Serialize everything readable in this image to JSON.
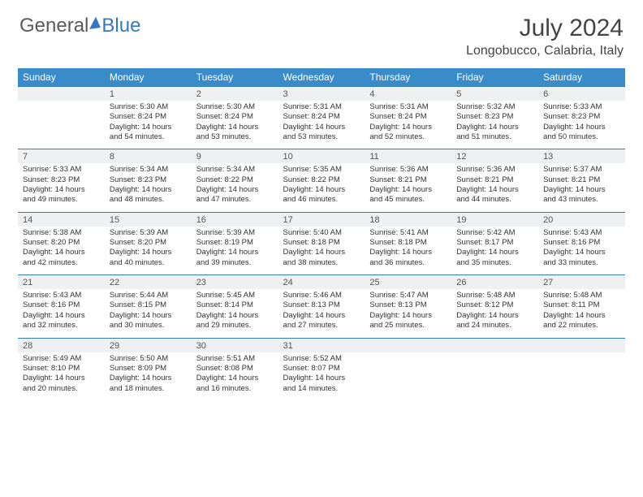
{
  "brand": {
    "name1": "General",
    "name2": "Blue"
  },
  "title": "July 2024",
  "location": "Longobucco, Calabria, Italy",
  "colors": {
    "header_bg": "#3a8bc9",
    "header_text": "#ffffff",
    "daynum_bg": "#eef0f2",
    "border": "#3a7bb0",
    "text": "#333333",
    "logo_gray": "#5a5a5a",
    "logo_blue": "#3478c0"
  },
  "day_headers": [
    "Sunday",
    "Monday",
    "Tuesday",
    "Wednesday",
    "Thursday",
    "Friday",
    "Saturday"
  ],
  "weeks": [
    [
      {
        "num": "",
        "lines": []
      },
      {
        "num": "1",
        "lines": [
          "Sunrise: 5:30 AM",
          "Sunset: 8:24 PM",
          "Daylight: 14 hours",
          "and 54 minutes."
        ]
      },
      {
        "num": "2",
        "lines": [
          "Sunrise: 5:30 AM",
          "Sunset: 8:24 PM",
          "Daylight: 14 hours",
          "and 53 minutes."
        ]
      },
      {
        "num": "3",
        "lines": [
          "Sunrise: 5:31 AM",
          "Sunset: 8:24 PM",
          "Daylight: 14 hours",
          "and 53 minutes."
        ]
      },
      {
        "num": "4",
        "lines": [
          "Sunrise: 5:31 AM",
          "Sunset: 8:24 PM",
          "Daylight: 14 hours",
          "and 52 minutes."
        ]
      },
      {
        "num": "5",
        "lines": [
          "Sunrise: 5:32 AM",
          "Sunset: 8:23 PM",
          "Daylight: 14 hours",
          "and 51 minutes."
        ]
      },
      {
        "num": "6",
        "lines": [
          "Sunrise: 5:33 AM",
          "Sunset: 8:23 PM",
          "Daylight: 14 hours",
          "and 50 minutes."
        ]
      }
    ],
    [
      {
        "num": "7",
        "lines": [
          "Sunrise: 5:33 AM",
          "Sunset: 8:23 PM",
          "Daylight: 14 hours",
          "and 49 minutes."
        ]
      },
      {
        "num": "8",
        "lines": [
          "Sunrise: 5:34 AM",
          "Sunset: 8:23 PM",
          "Daylight: 14 hours",
          "and 48 minutes."
        ]
      },
      {
        "num": "9",
        "lines": [
          "Sunrise: 5:34 AM",
          "Sunset: 8:22 PM",
          "Daylight: 14 hours",
          "and 47 minutes."
        ]
      },
      {
        "num": "10",
        "lines": [
          "Sunrise: 5:35 AM",
          "Sunset: 8:22 PM",
          "Daylight: 14 hours",
          "and 46 minutes."
        ]
      },
      {
        "num": "11",
        "lines": [
          "Sunrise: 5:36 AM",
          "Sunset: 8:21 PM",
          "Daylight: 14 hours",
          "and 45 minutes."
        ]
      },
      {
        "num": "12",
        "lines": [
          "Sunrise: 5:36 AM",
          "Sunset: 8:21 PM",
          "Daylight: 14 hours",
          "and 44 minutes."
        ]
      },
      {
        "num": "13",
        "lines": [
          "Sunrise: 5:37 AM",
          "Sunset: 8:21 PM",
          "Daylight: 14 hours",
          "and 43 minutes."
        ]
      }
    ],
    [
      {
        "num": "14",
        "lines": [
          "Sunrise: 5:38 AM",
          "Sunset: 8:20 PM",
          "Daylight: 14 hours",
          "and 42 minutes."
        ]
      },
      {
        "num": "15",
        "lines": [
          "Sunrise: 5:39 AM",
          "Sunset: 8:20 PM",
          "Daylight: 14 hours",
          "and 40 minutes."
        ]
      },
      {
        "num": "16",
        "lines": [
          "Sunrise: 5:39 AM",
          "Sunset: 8:19 PM",
          "Daylight: 14 hours",
          "and 39 minutes."
        ]
      },
      {
        "num": "17",
        "lines": [
          "Sunrise: 5:40 AM",
          "Sunset: 8:18 PM",
          "Daylight: 14 hours",
          "and 38 minutes."
        ]
      },
      {
        "num": "18",
        "lines": [
          "Sunrise: 5:41 AM",
          "Sunset: 8:18 PM",
          "Daylight: 14 hours",
          "and 36 minutes."
        ]
      },
      {
        "num": "19",
        "lines": [
          "Sunrise: 5:42 AM",
          "Sunset: 8:17 PM",
          "Daylight: 14 hours",
          "and 35 minutes."
        ]
      },
      {
        "num": "20",
        "lines": [
          "Sunrise: 5:43 AM",
          "Sunset: 8:16 PM",
          "Daylight: 14 hours",
          "and 33 minutes."
        ]
      }
    ],
    [
      {
        "num": "21",
        "lines": [
          "Sunrise: 5:43 AM",
          "Sunset: 8:16 PM",
          "Daylight: 14 hours",
          "and 32 minutes."
        ]
      },
      {
        "num": "22",
        "lines": [
          "Sunrise: 5:44 AM",
          "Sunset: 8:15 PM",
          "Daylight: 14 hours",
          "and 30 minutes."
        ]
      },
      {
        "num": "23",
        "lines": [
          "Sunrise: 5:45 AM",
          "Sunset: 8:14 PM",
          "Daylight: 14 hours",
          "and 29 minutes."
        ]
      },
      {
        "num": "24",
        "lines": [
          "Sunrise: 5:46 AM",
          "Sunset: 8:13 PM",
          "Daylight: 14 hours",
          "and 27 minutes."
        ]
      },
      {
        "num": "25",
        "lines": [
          "Sunrise: 5:47 AM",
          "Sunset: 8:13 PM",
          "Daylight: 14 hours",
          "and 25 minutes."
        ]
      },
      {
        "num": "26",
        "lines": [
          "Sunrise: 5:48 AM",
          "Sunset: 8:12 PM",
          "Daylight: 14 hours",
          "and 24 minutes."
        ]
      },
      {
        "num": "27",
        "lines": [
          "Sunrise: 5:48 AM",
          "Sunset: 8:11 PM",
          "Daylight: 14 hours",
          "and 22 minutes."
        ]
      }
    ],
    [
      {
        "num": "28",
        "lines": [
          "Sunrise: 5:49 AM",
          "Sunset: 8:10 PM",
          "Daylight: 14 hours",
          "and 20 minutes."
        ]
      },
      {
        "num": "29",
        "lines": [
          "Sunrise: 5:50 AM",
          "Sunset: 8:09 PM",
          "Daylight: 14 hours",
          "and 18 minutes."
        ]
      },
      {
        "num": "30",
        "lines": [
          "Sunrise: 5:51 AM",
          "Sunset: 8:08 PM",
          "Daylight: 14 hours",
          "and 16 minutes."
        ]
      },
      {
        "num": "31",
        "lines": [
          "Sunrise: 5:52 AM",
          "Sunset: 8:07 PM",
          "Daylight: 14 hours",
          "and 14 minutes."
        ]
      },
      {
        "num": "",
        "lines": []
      },
      {
        "num": "",
        "lines": []
      },
      {
        "num": "",
        "lines": []
      }
    ]
  ]
}
